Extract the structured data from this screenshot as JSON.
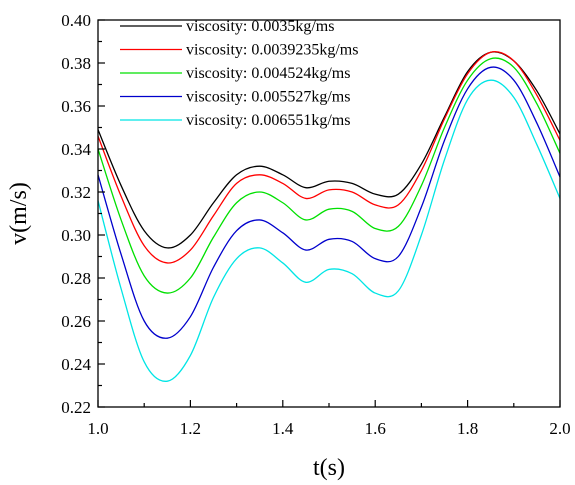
{
  "chart_data": {
    "type": "line",
    "title": "",
    "xlabel": "t(s)",
    "ylabel": "v(m/s)",
    "xlim": [
      1.0,
      2.0
    ],
    "ylim": [
      0.22,
      0.4
    ],
    "x_ticks": [
      1.0,
      1.2,
      1.4,
      1.6,
      1.8,
      2.0
    ],
    "x_tick_labels": [
      "1.0",
      "1.2",
      "1.4",
      "1.6",
      "1.8",
      "2.0"
    ],
    "y_ticks": [
      0.22,
      0.24,
      0.26,
      0.28,
      0.3,
      0.32,
      0.34,
      0.36,
      0.38,
      0.4
    ],
    "y_tick_labels": [
      "0.22",
      "0.24",
      "0.26",
      "0.28",
      "0.30",
      "0.32",
      "0.34",
      "0.36",
      "0.38",
      "0.40"
    ],
    "grid": false,
    "legend_position": "top-left",
    "x": [
      1.0,
      1.05,
      1.1,
      1.15,
      1.2,
      1.25,
      1.3,
      1.35,
      1.4,
      1.45,
      1.5,
      1.55,
      1.6,
      1.65,
      1.7,
      1.75,
      1.8,
      1.85,
      1.9,
      1.95,
      2.0
    ],
    "series": [
      {
        "name": "viscosity: 0.0035kg/ms",
        "color": "#000000",
        "values": [
          0.349,
          0.323,
          0.302,
          0.294,
          0.3,
          0.315,
          0.328,
          0.332,
          0.328,
          0.322,
          0.325,
          0.324,
          0.319,
          0.319,
          0.333,
          0.355,
          0.376,
          0.385,
          0.381,
          0.367,
          0.347
        ]
      },
      {
        "name": "viscosity: 0.0039235kg/ms",
        "color": "#ff0000",
        "values": [
          0.346,
          0.318,
          0.295,
          0.287,
          0.293,
          0.309,
          0.324,
          0.328,
          0.324,
          0.317,
          0.321,
          0.32,
          0.314,
          0.314,
          0.33,
          0.354,
          0.375,
          0.385,
          0.381,
          0.365,
          0.344
        ]
      },
      {
        "name": "viscosity: 0.004524kg/ms",
        "color": "#00e000",
        "values": [
          0.34,
          0.307,
          0.281,
          0.273,
          0.28,
          0.299,
          0.315,
          0.32,
          0.315,
          0.307,
          0.312,
          0.311,
          0.303,
          0.304,
          0.323,
          0.35,
          0.372,
          0.382,
          0.378,
          0.361,
          0.338
        ]
      },
      {
        "name": "viscosity: 0.005527kg/ms",
        "color": "#0000cc",
        "values": [
          0.328,
          0.291,
          0.26,
          0.252,
          0.262,
          0.285,
          0.302,
          0.307,
          0.301,
          0.293,
          0.298,
          0.297,
          0.289,
          0.29,
          0.313,
          0.344,
          0.368,
          0.378,
          0.372,
          0.352,
          0.327
        ]
      },
      {
        "name": "viscosity: 0.006551kg/ms",
        "color": "#00e5e5",
        "values": [
          0.316,
          0.275,
          0.241,
          0.232,
          0.244,
          0.271,
          0.289,
          0.294,
          0.287,
          0.278,
          0.284,
          0.282,
          0.273,
          0.274,
          0.3,
          0.335,
          0.363,
          0.372,
          0.364,
          0.342,
          0.317
        ]
      }
    ]
  }
}
